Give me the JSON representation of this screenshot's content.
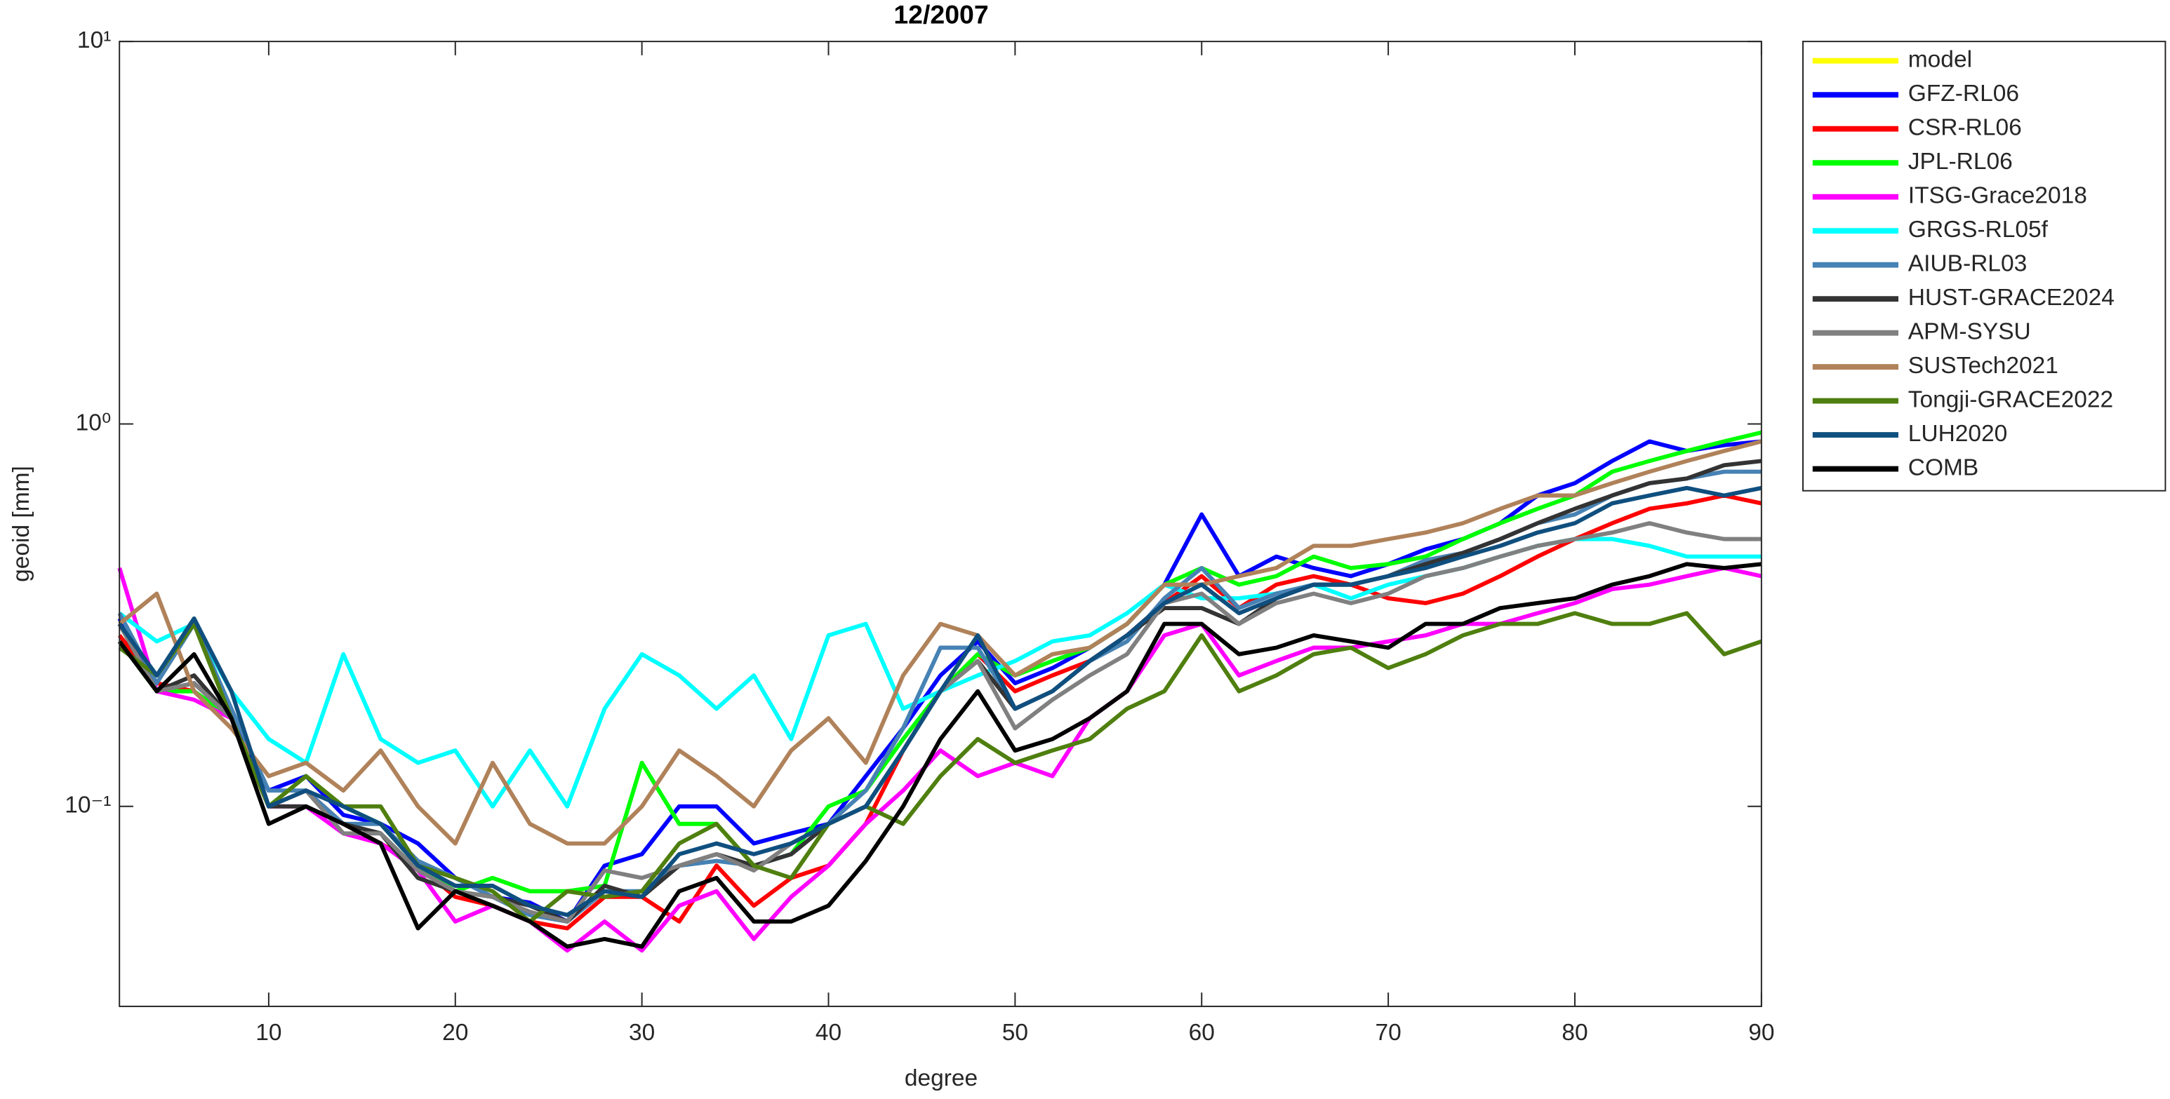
{
  "chart_data": {
    "type": "line",
    "title": "12/2007",
    "x_label": "degree",
    "y_label": "geoid [mm]",
    "log_y": true,
    "xlim": [
      2,
      90
    ],
    "ylim": [
      0.03,
      10
    ],
    "xticks": [
      10,
      20,
      30,
      40,
      50,
      60,
      70,
      80,
      90
    ],
    "yticks": [
      {
        "value": 0.1,
        "label": "10⁻¹"
      },
      {
        "value": 1,
        "label": "10⁰"
      },
      {
        "value": 10,
        "label": "10¹"
      }
    ],
    "legend": "outside-right",
    "x": [
      2,
      4,
      6,
      8,
      10,
      12,
      14,
      16,
      18,
      20,
      22,
      24,
      26,
      28,
      30,
      32,
      34,
      36,
      38,
      40,
      42,
      44,
      46,
      48,
      50,
      52,
      54,
      56,
      58,
      60,
      62,
      64,
      66,
      68,
      70,
      72,
      74,
      76,
      78,
      80,
      82,
      84,
      86,
      88,
      90
    ],
    "series": [
      {
        "name": "model",
        "color": "#ffff00",
        "values": [
          null,
          null,
          null,
          null,
          null,
          null,
          null,
          null,
          null,
          null,
          null,
          null,
          null,
          null,
          null,
          null,
          null,
          null,
          null,
          null,
          null,
          null,
          null,
          null,
          null,
          null,
          null,
          null,
          null,
          null,
          null,
          null,
          null,
          null,
          null,
          null,
          null,
          null,
          null,
          null,
          null,
          null,
          null,
          null,
          null
        ]
      },
      {
        "name": "GFZ-RL06",
        "color": "#0000ff",
        "values": [
          0.31,
          0.2,
          0.21,
          0.17,
          0.11,
          0.12,
          0.095,
          0.09,
          0.08,
          0.065,
          0.058,
          0.056,
          0.05,
          0.07,
          0.075,
          0.1,
          0.1,
          0.08,
          0.085,
          0.09,
          0.12,
          0.16,
          0.22,
          0.27,
          0.21,
          0.23,
          0.26,
          0.3,
          0.38,
          0.58,
          0.4,
          0.45,
          0.42,
          0.4,
          0.43,
          0.47,
          0.5,
          0.55,
          0.65,
          0.7,
          0.8,
          0.9,
          0.85,
          0.88,
          0.9
        ]
      },
      {
        "name": "CSR-RL06",
        "color": "#ff0000",
        "values": [
          0.28,
          0.21,
          0.2,
          0.17,
          0.1,
          0.11,
          0.09,
          0.08,
          0.07,
          0.058,
          0.055,
          0.05,
          0.048,
          0.058,
          0.058,
          0.05,
          0.07,
          0.055,
          0.065,
          0.07,
          0.09,
          0.14,
          0.2,
          0.25,
          0.2,
          0.22,
          0.24,
          0.28,
          0.34,
          0.4,
          0.33,
          0.38,
          0.4,
          0.38,
          0.35,
          0.34,
          0.36,
          0.4,
          0.45,
          0.5,
          0.55,
          0.6,
          0.62,
          0.65,
          0.62
        ]
      },
      {
        "name": "JPL-RL06",
        "color": "#00ff00",
        "values": [
          0.27,
          0.2,
          0.2,
          0.17,
          0.1,
          0.12,
          0.1,
          0.09,
          0.07,
          0.06,
          0.065,
          0.06,
          0.06,
          0.062,
          0.13,
          0.09,
          0.09,
          0.07,
          0.075,
          0.1,
          0.11,
          0.15,
          0.2,
          0.25,
          0.22,
          0.24,
          0.26,
          0.3,
          0.38,
          0.42,
          0.38,
          0.4,
          0.45,
          0.42,
          0.43,
          0.45,
          0.5,
          0.55,
          0.6,
          0.65,
          0.75,
          0.8,
          0.85,
          0.9,
          0.95
        ]
      },
      {
        "name": "ITSG-Grace2018",
        "color": "#ff00ff",
        "values": [
          0.42,
          0.2,
          0.19,
          0.17,
          0.1,
          0.1,
          0.085,
          0.08,
          0.068,
          0.05,
          0.055,
          0.05,
          0.042,
          0.05,
          0.042,
          0.055,
          0.06,
          0.045,
          0.058,
          0.07,
          0.09,
          0.11,
          0.14,
          0.12,
          0.13,
          0.12,
          0.17,
          0.2,
          0.28,
          0.3,
          0.22,
          0.24,
          0.26,
          0.26,
          0.27,
          0.28,
          0.3,
          0.3,
          0.32,
          0.34,
          0.37,
          0.38,
          0.4,
          0.42,
          0.4
        ]
      },
      {
        "name": "GRGS-RL05f",
        "color": "#00ffff",
        "values": [
          0.32,
          0.27,
          0.3,
          0.2,
          0.15,
          0.13,
          0.25,
          0.15,
          0.13,
          0.14,
          0.1,
          0.14,
          0.1,
          0.18,
          0.25,
          0.22,
          0.18,
          0.22,
          0.15,
          0.28,
          0.3,
          0.18,
          0.2,
          0.22,
          0.24,
          0.27,
          0.28,
          0.32,
          0.38,
          0.35,
          0.35,
          0.36,
          0.38,
          0.35,
          0.38,
          0.4,
          0.42,
          0.45,
          0.48,
          0.5,
          0.5,
          0.48,
          0.45,
          0.45,
          0.45
        ]
      },
      {
        "name": "AIUB-RL03",
        "color": "#4682b4",
        "values": [
          0.32,
          0.21,
          0.3,
          0.18,
          0.11,
          0.11,
          0.09,
          0.09,
          0.072,
          0.065,
          0.058,
          0.052,
          0.05,
          0.06,
          0.06,
          0.07,
          0.072,
          0.07,
          0.075,
          0.09,
          0.11,
          0.16,
          0.26,
          0.26,
          0.18,
          0.2,
          0.24,
          0.27,
          0.35,
          0.42,
          0.33,
          0.36,
          0.38,
          0.38,
          0.4,
          0.44,
          0.46,
          0.5,
          0.55,
          0.58,
          0.65,
          0.7,
          0.72,
          0.75,
          0.75
        ]
      },
      {
        "name": "HUST-GRACE2024",
        "color": "#333333",
        "values": [
          0.3,
          0.2,
          0.22,
          0.17,
          0.1,
          0.1,
          0.09,
          0.085,
          0.065,
          0.06,
          0.058,
          0.055,
          0.05,
          0.062,
          0.058,
          0.07,
          0.075,
          0.07,
          0.075,
          0.09,
          0.1,
          0.14,
          0.2,
          0.24,
          0.18,
          0.2,
          0.24,
          0.28,
          0.33,
          0.33,
          0.3,
          0.35,
          0.38,
          0.38,
          0.4,
          0.43,
          0.46,
          0.5,
          0.55,
          0.6,
          0.65,
          0.7,
          0.72,
          0.78,
          0.8
        ]
      },
      {
        "name": "APM-SYSU",
        "color": "#808080",
        "values": [
          0.3,
          0.2,
          0.21,
          0.17,
          0.1,
          0.11,
          0.085,
          0.085,
          0.068,
          0.06,
          0.058,
          0.053,
          0.05,
          0.068,
          0.065,
          0.07,
          0.075,
          0.068,
          0.08,
          0.09,
          0.1,
          0.14,
          0.2,
          0.24,
          0.16,
          0.19,
          0.22,
          0.25,
          0.34,
          0.36,
          0.3,
          0.34,
          0.36,
          0.34,
          0.36,
          0.4,
          0.42,
          0.45,
          0.48,
          0.5,
          0.52,
          0.55,
          0.52,
          0.5,
          0.5
        ]
      },
      {
        "name": "SUSTech2021",
        "color": "#b0825a",
        "values": [
          0.3,
          0.36,
          0.2,
          0.16,
          0.12,
          0.13,
          0.11,
          0.14,
          0.1,
          0.08,
          0.13,
          0.09,
          0.08,
          0.08,
          0.1,
          0.14,
          0.12,
          0.1,
          0.14,
          0.17,
          0.13,
          0.22,
          0.3,
          0.28,
          0.22,
          0.25,
          0.26,
          0.3,
          0.38,
          0.38,
          0.4,
          0.42,
          0.48,
          0.48,
          0.5,
          0.52,
          0.55,
          0.6,
          0.65,
          0.65,
          0.7,
          0.75,
          0.8,
          0.85,
          0.9
        ]
      },
      {
        "name": "Tongji-GRACE2022",
        "color": "#4f7f0f",
        "values": [
          0.26,
          0.22,
          0.3,
          0.17,
          0.1,
          0.12,
          0.1,
          0.1,
          0.07,
          0.065,
          0.06,
          0.05,
          0.06,
          0.058,
          0.06,
          0.08,
          0.09,
          0.07,
          0.065,
          0.09,
          0.1,
          0.09,
          0.12,
          0.15,
          0.13,
          0.14,
          0.15,
          0.18,
          0.2,
          0.28,
          0.2,
          0.22,
          0.25,
          0.26,
          0.23,
          0.25,
          0.28,
          0.3,
          0.3,
          0.32,
          0.3,
          0.3,
          0.32,
          0.25,
          0.27
        ]
      },
      {
        "name": "LUH2020",
        "color": "#0f4f7f",
        "values": [
          0.3,
          0.22,
          0.31,
          0.2,
          0.1,
          0.11,
          0.1,
          0.09,
          0.07,
          0.062,
          0.062,
          0.055,
          0.052,
          0.06,
          0.058,
          0.075,
          0.08,
          0.075,
          0.08,
          0.09,
          0.1,
          0.14,
          0.2,
          0.28,
          0.18,
          0.2,
          0.24,
          0.28,
          0.34,
          0.38,
          0.32,
          0.35,
          0.38,
          0.38,
          0.4,
          0.42,
          0.45,
          0.48,
          0.52,
          0.55,
          0.62,
          0.65,
          0.68,
          0.65,
          0.68
        ]
      },
      {
        "name": "COMB",
        "color": "#000000",
        "values": [
          0.27,
          0.2,
          0.25,
          0.17,
          0.09,
          0.1,
          0.09,
          0.08,
          0.048,
          0.06,
          0.055,
          0.05,
          0.043,
          0.045,
          0.043,
          0.06,
          0.065,
          0.05,
          0.05,
          0.055,
          0.072,
          0.1,
          0.15,
          0.2,
          0.14,
          0.15,
          0.17,
          0.2,
          0.3,
          0.3,
          0.25,
          0.26,
          0.28,
          0.27,
          0.26,
          0.3,
          0.3,
          0.33,
          0.34,
          0.35,
          0.38,
          0.4,
          0.43,
          0.42,
          0.43
        ]
      }
    ]
  }
}
